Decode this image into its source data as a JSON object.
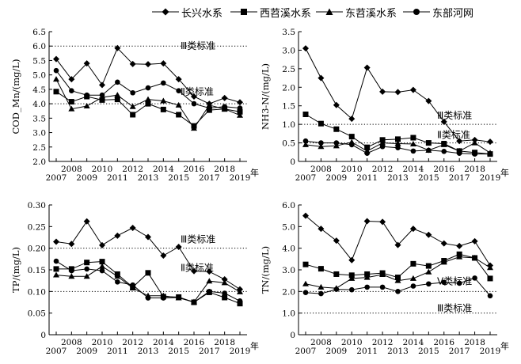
{
  "legend": [
    {
      "name": "长兴水系",
      "marker": "diamond"
    },
    {
      "name": "西苕溪水系",
      "marker": "square"
    },
    {
      "name": "东苕溪水系",
      "marker": "triangle"
    },
    {
      "name": "东部河网",
      "marker": "circle"
    }
  ],
  "chart_data": [
    {
      "type": "line",
      "ylabel": "COD_Mn/(mg/L)",
      "x_suffix": "年",
      "categories": [
        "2007",
        "2008",
        "2009",
        "2010",
        "2011",
        "2012",
        "2013",
        "2014",
        "2015",
        "2016",
        "2017",
        "2018",
        "2019"
      ],
      "ylim": [
        2.0,
        6.5
      ],
      "yticks": [
        "2.0",
        "2.5",
        "3.0",
        "3.5",
        "4.0",
        "4.5",
        "5.0",
        "5.5",
        "6.0",
        "6.5"
      ],
      "reference_lines": [
        {
          "label": "Ⅲ类标准",
          "value": 6.0
        },
        {
          "label": "Ⅱ类标准",
          "value": 4.0
        }
      ],
      "series": [
        {
          "name": "长兴水系",
          "values": [
            5.55,
            4.85,
            5.4,
            4.65,
            5.93,
            5.38,
            5.37,
            5.4,
            4.85,
            4.25,
            4.0,
            4.2,
            4.05
          ]
        },
        {
          "name": "西苕溪水系",
          "values": [
            4.42,
            4.07,
            4.25,
            4.13,
            4.15,
            3.62,
            4.0,
            3.8,
            3.62,
            3.23,
            3.78,
            3.82,
            3.72
          ]
        },
        {
          "name": "东苕溪水系",
          "values": [
            4.85,
            3.82,
            3.92,
            4.22,
            4.3,
            3.9,
            4.15,
            4.1,
            3.95,
            3.15,
            3.95,
            3.82,
            3.6
          ]
        },
        {
          "name": "东部河网",
          "values": [
            5.15,
            4.45,
            4.3,
            4.3,
            4.75,
            4.38,
            4.55,
            4.72,
            4.45,
            4.0,
            3.85,
            3.9,
            3.85
          ]
        }
      ]
    },
    {
      "type": "line",
      "ylabel": "NH3-N/(mg/L)",
      "x_suffix": "年",
      "categories": [
        "2007",
        "2008",
        "2009",
        "2010",
        "2011",
        "2012",
        "2013",
        "2014",
        "2015",
        "2016",
        "2017",
        "2018",
        "2019"
      ],
      "ylim": [
        0.0,
        3.5
      ],
      "yticks": [
        "0",
        "0.5",
        "1.0",
        "1.5",
        "2.0",
        "2.5",
        "3.0",
        "3.5"
      ],
      "reference_lines": [
        {
          "label": "Ⅲ类标准",
          "value": 1.0
        },
        {
          "label": "Ⅱ类标准",
          "value": 0.5
        }
      ],
      "series": [
        {
          "name": "长兴水系",
          "values": [
            3.05,
            2.25,
            1.52,
            1.15,
            2.53,
            1.88,
            1.87,
            1.93,
            1.63,
            1.07,
            0.55,
            0.58,
            0.53
          ]
        },
        {
          "name": "西苕溪水系",
          "values": [
            1.27,
            1.02,
            0.87,
            0.67,
            0.38,
            0.58,
            0.6,
            0.64,
            0.5,
            0.48,
            0.28,
            0.24,
            0.2
          ]
        },
        {
          "name": "东苕溪水系",
          "values": [
            0.45,
            0.4,
            0.42,
            0.52,
            0.28,
            0.5,
            0.48,
            0.47,
            0.3,
            0.45,
            0.28,
            0.5,
            0.23
          ]
        },
        {
          "name": "东部河网",
          "values": [
            0.55,
            0.5,
            0.5,
            0.45,
            0.22,
            0.4,
            0.37,
            0.28,
            0.3,
            0.27,
            0.22,
            0.2,
            0.2
          ]
        }
      ]
    },
    {
      "type": "line",
      "ylabel": "TP/(mg/L)",
      "x_suffix": "年",
      "categories": [
        "2007",
        "2008",
        "2009",
        "2010",
        "2011",
        "2012",
        "2013",
        "2014",
        "2015",
        "2016",
        "2017",
        "2018",
        "2019"
      ],
      "ylim": [
        0.0,
        0.3
      ],
      "yticks": [
        "0",
        "0.05",
        "0.10",
        "0.15",
        "0.20",
        "0.25",
        "0.30"
      ],
      "reference_lines": [
        {
          "label": "Ⅲ类标准",
          "value": 0.2
        },
        {
          "label": "Ⅱ类标准",
          "value": 0.1
        }
      ],
      "series": [
        {
          "name": "长兴水系",
          "values": [
            0.215,
            0.21,
            0.262,
            0.207,
            0.229,
            0.247,
            0.226,
            0.183,
            0.203,
            0.147,
            0.146,
            0.128,
            0.105
          ]
        },
        {
          "name": "西苕溪水系",
          "values": [
            0.152,
            0.152,
            0.167,
            0.169,
            0.14,
            0.11,
            0.143,
            0.088,
            0.087,
            0.075,
            0.098,
            0.086,
            0.072
          ]
        },
        {
          "name": "东苕溪水系",
          "values": [
            0.138,
            0.135,
            0.135,
            0.158,
            0.135,
            0.108,
            0.09,
            0.09,
            0.085,
            0.076,
            0.124,
            0.12,
            0.099
          ]
        },
        {
          "name": "东部河网",
          "values": [
            0.17,
            0.148,
            0.152,
            0.148,
            0.122,
            0.115,
            0.085,
            0.085,
            0.086,
            0.075,
            0.1,
            0.096,
            0.078
          ]
        }
      ]
    },
    {
      "type": "line",
      "ylabel": "TN/(mg/L)",
      "x_suffix": "年",
      "categories": [
        "2007",
        "2008",
        "2009",
        "2010",
        "2011",
        "2012",
        "2013",
        "2014",
        "2015",
        "2016",
        "2017",
        "2018",
        "2019"
      ],
      "ylim": [
        0.0,
        6.0
      ],
      "yticks": [
        "0",
        "1.0",
        "2.0",
        "3.0",
        "4.0",
        "5.0",
        "6.0"
      ],
      "reference_lines": [
        {
          "label": "Ⅴ类标准",
          "value": 2.0
        },
        {
          "label": "Ⅲ类标准",
          "value": 1.0
        }
      ],
      "series": [
        {
          "name": "长兴水系",
          "values": [
            5.5,
            4.9,
            4.35,
            3.45,
            5.25,
            5.22,
            4.15,
            4.9,
            4.62,
            4.22,
            4.1,
            4.32,
            3.2
          ]
        },
        {
          "name": "西苕溪水系",
          "values": [
            3.25,
            3.05,
            2.8,
            2.75,
            2.8,
            2.85,
            2.65,
            3.28,
            3.18,
            3.42,
            3.72,
            3.55,
            2.6
          ]
        },
        {
          "name": "东苕溪水系",
          "values": [
            2.35,
            2.2,
            2.15,
            2.6,
            2.65,
            2.78,
            2.5,
            2.6,
            2.9,
            3.35,
            3.6,
            3.55,
            3.1
          ]
        },
        {
          "name": "东部河网",
          "values": [
            1.95,
            1.9,
            2.1,
            2.08,
            2.2,
            2.2,
            2.0,
            2.25,
            2.35,
            2.42,
            2.38,
            2.62,
            1.8
          ]
        }
      ]
    }
  ]
}
